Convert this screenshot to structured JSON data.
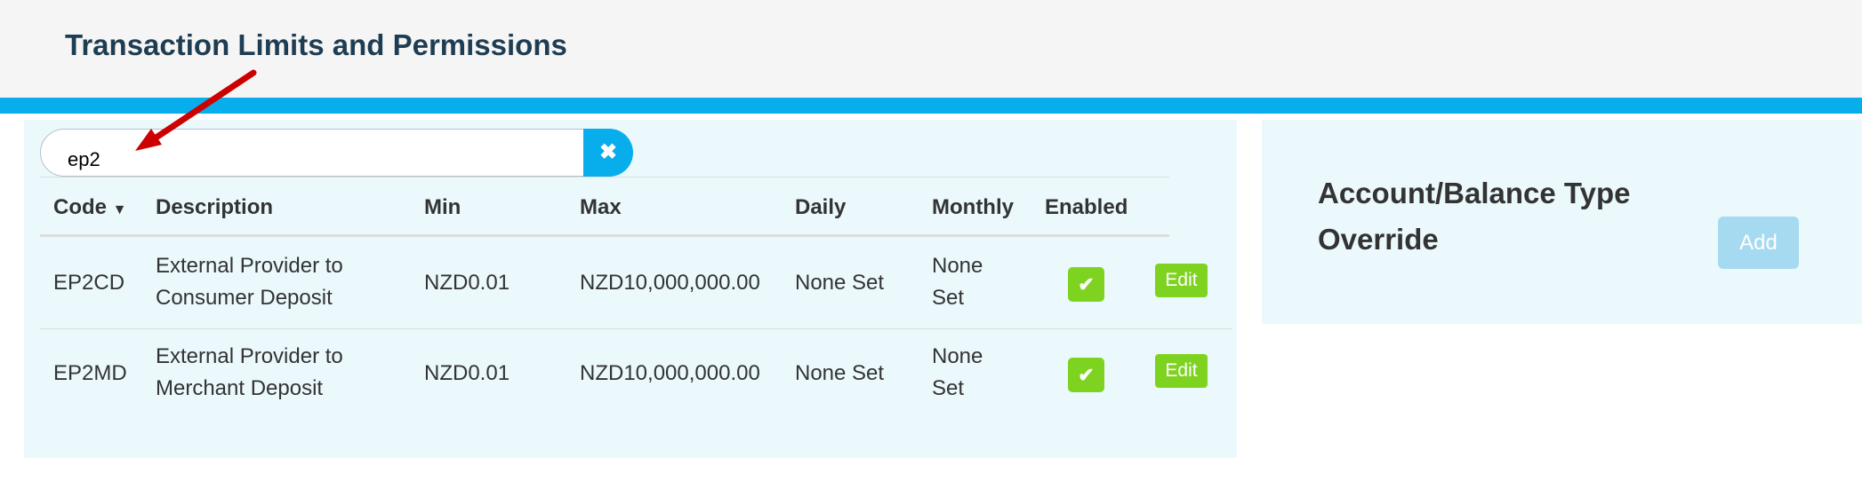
{
  "header": {
    "title": "Transaction Limits and Permissions"
  },
  "search": {
    "value": "ep2",
    "clear_icon": "times-icon"
  },
  "table": {
    "columns": [
      "Code",
      "Description",
      "Min",
      "Max",
      "Daily",
      "Monthly",
      "Enabled"
    ],
    "sort_icon": "caret-down-icon",
    "rows": [
      {
        "code": "EP2CD",
        "description": [
          "External Provider to",
          "Consumer Deposit"
        ],
        "min": "NZD0.01",
        "max": "NZD10,000,000.00",
        "daily": "None Set",
        "monthly": [
          "None",
          "Set"
        ],
        "enabled": true,
        "edit": "Edit"
      },
      {
        "code": "EP2MD",
        "description": [
          "External Provider to",
          "Merchant Deposit"
        ],
        "min": "NZD0.01",
        "max": "NZD10,000,000.00",
        "daily": "None Set",
        "monthly": [
          "None",
          "Set"
        ],
        "enabled": true,
        "edit": "Edit"
      }
    ]
  },
  "override": {
    "title": "Account/Balance Type Override",
    "add_label": "Add"
  },
  "colors": {
    "accent": "#08aeec",
    "success": "#7ed321",
    "panel": "#ebf9fd",
    "annotation_arrow": "#cc0000"
  }
}
